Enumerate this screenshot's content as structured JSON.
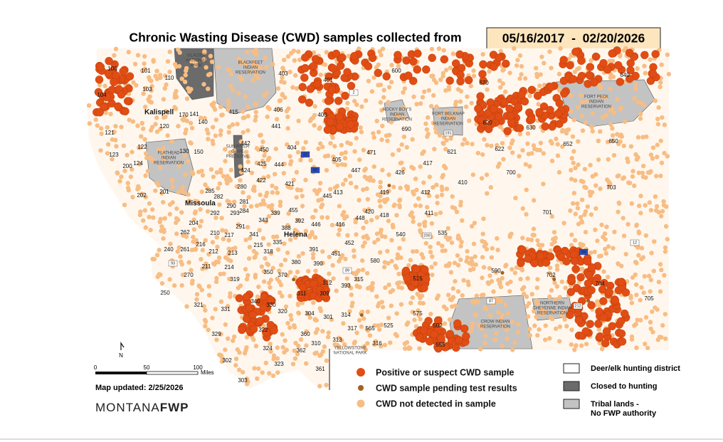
{
  "header": {
    "title": "Chronic Wasting Disease (CWD) samples collected from",
    "date_range": "05/16/2017  -  02/20/2026"
  },
  "legend": {
    "samples": [
      "Positive or suspect CWD sample",
      "CWD sample pending test results",
      "CWD not detected in sample"
    ],
    "areas": [
      [
        "Deer/elk hunting district"
      ],
      [
        "Closed to hunting"
      ],
      [
        "Tribal lands -",
        "No FWP authority"
      ]
    ]
  },
  "scale": {
    "ticks": [
      "0",
      "50",
      "100"
    ],
    "unit": "Miles"
  },
  "north": "N",
  "updated": "Map updated: 2/25/2026",
  "logo": {
    "text": "MONTANA",
    "bold": "FWP"
  },
  "cities": [
    "Kalispell",
    "Missoula",
    "Helena"
  ],
  "regions": [
    [
      "GLACIER",
      "NATIONAL",
      "PARK"
    ],
    [
      "BLACKFEET",
      "INDIAN",
      "RESERVATION"
    ],
    [
      "FLATHEAD",
      "INDIAN",
      "RESERVATION"
    ],
    [
      "SUN RIVER",
      "GAME",
      "PRESERVE"
    ],
    [
      "ROCKY BOY'S",
      "INDIAN",
      "RESERVATION"
    ],
    [
      "FORT BELKNAP",
      "INDIAN",
      "RESERVATION"
    ],
    [
      "FORT PECK",
      "INDIAN",
      "RESERVATION"
    ],
    [
      "CROW INDIAN",
      "RESERVATION"
    ],
    [
      "NORTHERN",
      "CHEYENNE INDIAN",
      "RESERVATION"
    ],
    [
      "YELLOWSTONE",
      "NATIONAL PARK"
    ]
  ],
  "highways": [
    "15",
    "90",
    "94",
    "2",
    "93",
    "89",
    "87",
    "191",
    "12",
    "200",
    "212"
  ],
  "districts": [
    "100",
    "101",
    "110",
    "103",
    "104",
    "170",
    "141",
    "140",
    "120",
    "121",
    "122",
    "123",
    "124",
    "200",
    "130",
    "150",
    "202",
    "201",
    "285",
    "282",
    "280",
    "422",
    "421",
    "425",
    "424",
    "442",
    "450",
    "444",
    "441",
    "404",
    "405",
    "447",
    "471",
    "426",
    "417",
    "410",
    "412",
    "419",
    "413",
    "445",
    "420",
    "448",
    "418",
    "411",
    "540",
    "535",
    "416",
    "446",
    "455",
    "339",
    "388",
    "392",
    "291",
    "343",
    "293",
    "403",
    "401",
    "600",
    "670",
    "640",
    "406",
    "400",
    "690",
    "620",
    "630",
    "621",
    "622",
    "652",
    "650",
    "700",
    "703",
    "701",
    "702",
    "704",
    "705",
    "590",
    "515",
    "580",
    "452",
    "451",
    "391",
    "390",
    "393",
    "315",
    "312",
    "309",
    "311",
    "301",
    "304",
    "314",
    "317",
    "565",
    "525",
    "575",
    "502",
    "555",
    "316",
    "313",
    "310",
    "360",
    "362",
    "361",
    "323",
    "324",
    "302",
    "303",
    "329",
    "322",
    "320",
    "340",
    "330",
    "331",
    "321",
    "250",
    "270",
    "319",
    "211",
    "214",
    "213",
    "212",
    "216",
    "261",
    "240",
    "262",
    "204",
    "210",
    "217",
    "215",
    "318",
    "335",
    "350",
    "370",
    "380",
    "341",
    "292",
    "290",
    "281",
    "284",
    "415"
  ]
}
